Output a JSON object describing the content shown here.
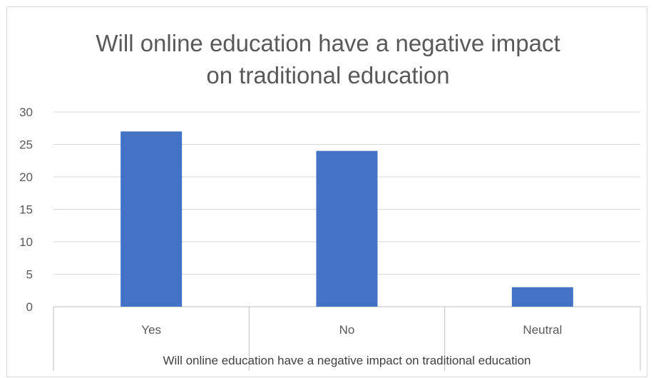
{
  "chart_data": {
    "type": "bar",
    "title_lines": [
      "Will online education have a negative impact",
      "on traditional education"
    ],
    "xlabel": "Will online education have a negative impact on traditional education",
    "ylabel": "",
    "categories": [
      "Yes",
      "No",
      "Neutral"
    ],
    "values": [
      27,
      24,
      3
    ],
    "ylim": [
      0,
      30
    ],
    "yticks": [
      "0",
      "5",
      "10",
      "15",
      "20",
      "25",
      "30"
    ],
    "grid": "horizontal",
    "legend": "none",
    "bar_color": "#4472C4",
    "grid_color": "#d9d9d9",
    "axis_line_color": "#bfbfbf",
    "table_line_color": "#bfbfbf"
  }
}
